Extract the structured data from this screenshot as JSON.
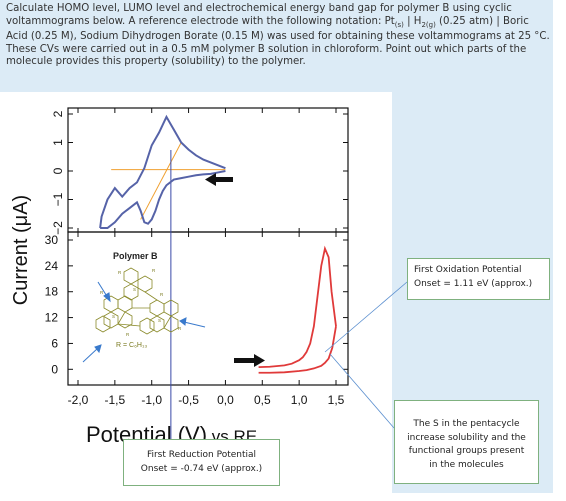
{
  "question": {
    "p1": "Calculate HOMO level, LUMO level and electrochemical energy band gap for polymer B using cyclic voltammograms below. A reference electrode with the following notation: Pt",
    "sub_s": "(s)",
    "p2": " | H",
    "sub_2g": "2(g)",
    "p3": " (0.25 atm) | Boric Acid (0.25 M), Sodium Dihydrogen Borate (0.15 M) was used for obtaining these voltammograms at 25 °C. These CVs were carried out in a 0.5 mM polymer B solution in chloroform. Point out which parts of the molecule provides this property (solubility) to the polymer."
  },
  "chart_data": [
    {
      "type": "line",
      "panel": "top",
      "yticks": [
        2,
        1,
        0,
        -1,
        -2
      ],
      "ylim": [
        -2.4,
        2.4
      ],
      "series": [
        {
          "x": [
            -1.7,
            -1.68,
            -1.6,
            -1.5,
            -1.4,
            -1.3,
            -1.2,
            -1.1,
            -1.0,
            -0.9,
            -0.8,
            -0.7,
            -0.6,
            -0.5,
            -0.4,
            -0.3,
            -0.2,
            -0.1,
            0.0
          ],
          "y": [
            -2.0,
            -1.6,
            -1.0,
            -0.6,
            -0.9,
            -0.6,
            -0.4,
            0.1,
            0.9,
            1.35,
            1.9,
            1.45,
            1.0,
            0.75,
            0.55,
            0.4,
            0.3,
            0.2,
            0.1
          ]
        },
        {
          "x": [
            0.0,
            -0.1,
            -0.2,
            -0.3,
            -0.4,
            -0.5,
            -0.6,
            -0.7,
            -0.8,
            -0.85,
            -0.9,
            -0.95,
            -1.0,
            -1.05,
            -1.1,
            -1.15,
            -1.2,
            -1.3,
            -1.4,
            -1.5,
            -1.6,
            -1.7
          ],
          "y": [
            0.0,
            -0.05,
            -0.1,
            -0.12,
            -0.15,
            -0.2,
            -0.25,
            -0.3,
            -0.5,
            -0.7,
            -1.0,
            -1.4,
            -1.7,
            -1.85,
            -1.8,
            -1.4,
            -1.1,
            -1.3,
            -1.5,
            -1.8,
            -2.0,
            -2.0
          ]
        }
      ]
    },
    {
      "type": "line",
      "panel": "bottom",
      "x": [
        -2.0,
        -1.5,
        -1.0,
        -0.5,
        0.0,
        0.5,
        1.0,
        1.5
      ],
      "xticks": [
        "-2,0",
        "-1,5",
        "-1,0",
        "-0,5",
        "0,0",
        "0,5",
        "1,0",
        "1,5"
      ],
      "yticks": [
        30,
        24,
        18,
        12,
        6,
        0
      ],
      "ylim": [
        -2,
        31
      ],
      "xlabel_main": "Potential (V)",
      "xlabel_suffix": " vs RE",
      "ylabel": "Current (μA)",
      "legend_title": "Polymer B",
      "substituent_label": "R = C₆H₁₃",
      "series": [
        {
          "x": [
            0.45,
            0.6,
            0.8,
            0.9,
            1.0,
            1.05,
            1.1,
            1.15,
            1.2,
            1.25,
            1.3,
            1.35,
            1.4,
            1.44,
            1.5
          ],
          "y": [
            0.5,
            0.6,
            0.9,
            1.3,
            2.1,
            2.8,
            4.0,
            6.0,
            10.0,
            17.0,
            24.0,
            28.0,
            26.0,
            18.0,
            10.0
          ]
        },
        {
          "x": [
            1.5,
            1.45,
            1.4,
            1.35,
            1.3,
            1.2,
            1.1,
            1.0,
            0.8,
            0.6,
            0.45
          ],
          "y": [
            10.0,
            5.0,
            2.5,
            1.5,
            0.8,
            0.2,
            -0.2,
            -0.4,
            -0.7,
            -0.8,
            -0.8
          ]
        }
      ]
    }
  ],
  "callouts": {
    "oxidation_l1": "First Oxidation Potential",
    "oxidation_l2": "Onset = 1.11 eV (approx.)",
    "solubility_l1": "The S in the pentacycle",
    "solubility_l2": "increase solubility and the",
    "solubility_l3": "functional groups present",
    "solubility_l4": "in the molecules",
    "reduction_l1": "First Reduction Potential",
    "reduction_l2": "Onset = -0.74 eV (approx.)"
  },
  "colors": {
    "top_curve": "#5663a8",
    "bottom_curve": "#e03a3a",
    "tangent": "#f0a030",
    "onset_line": "#3a4aa8",
    "arrow": "#111111",
    "blue_arrow": "#3a7acc"
  }
}
